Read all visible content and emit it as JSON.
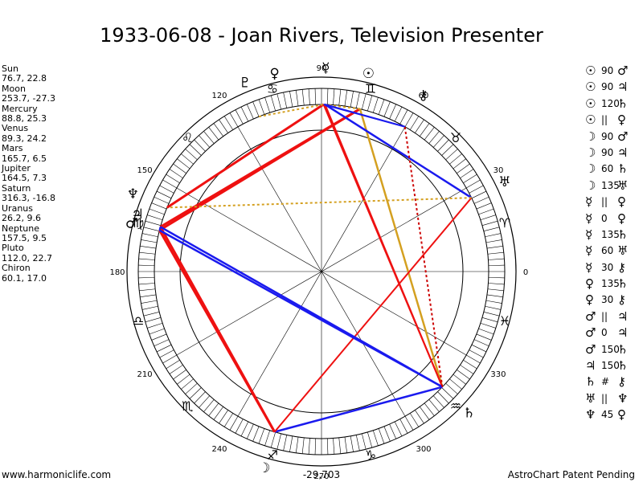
{
  "title": "1933-06-08 - Joan Rivers, Television Presenter",
  "positions": [
    {
      "name": "Sun",
      "values": "76.7, 22.8"
    },
    {
      "name": "Moon",
      "values": "253.7, -27.3"
    },
    {
      "name": "Mercury",
      "values": "88.8, 25.3"
    },
    {
      "name": "Venus",
      "values": "89.3, 24.2"
    },
    {
      "name": "Mars",
      "values": "165.7, 6.5"
    },
    {
      "name": "Jupiter",
      "values": "164.5, 7.3"
    },
    {
      "name": "Saturn",
      "values": "316.3, -16.8"
    },
    {
      "name": "Uranus",
      "values": "26.2, 9.6"
    },
    {
      "name": "Neptune",
      "values": "157.5, 9.5"
    },
    {
      "name": "Pluto",
      "values": "112.0, 22.7"
    },
    {
      "name": "Chiron",
      "values": "60.1, 17.0"
    }
  ],
  "aspects": [
    {
      "p1": "☉",
      "asp": "90",
      "p2": "♂"
    },
    {
      "p1": "☉",
      "asp": "90",
      "p2": "♃"
    },
    {
      "p1": "☉",
      "asp": "120",
      "p2": "♄"
    },
    {
      "p1": "☉",
      "asp": "||",
      "p2": "♀"
    },
    {
      "p1": "☽",
      "asp": "90",
      "p2": "♂"
    },
    {
      "p1": "☽",
      "asp": "90",
      "p2": "♃"
    },
    {
      "p1": "☽",
      "asp": "60",
      "p2": "♄"
    },
    {
      "p1": "☽",
      "asp": "135",
      "p2": "♅"
    },
    {
      "p1": "☿",
      "asp": "||",
      "p2": "♀"
    },
    {
      "p1": "☿",
      "asp": "0",
      "p2": "♀"
    },
    {
      "p1": "☿",
      "asp": "135",
      "p2": "♄"
    },
    {
      "p1": "☿",
      "asp": "60",
      "p2": "♅"
    },
    {
      "p1": "☿",
      "asp": "30",
      "p2": "⚷"
    },
    {
      "p1": "♀",
      "asp": "135",
      "p2": "♄"
    },
    {
      "p1": "♀",
      "asp": "30",
      "p2": "⚷"
    },
    {
      "p1": "♂",
      "asp": "||",
      "p2": "♃"
    },
    {
      "p1": "♂",
      "asp": "0",
      "p2": "♃"
    },
    {
      "p1": "♂",
      "asp": "150",
      "p2": "♄"
    },
    {
      "p1": "♃",
      "asp": "150",
      "p2": "♄"
    },
    {
      "p1": "♄",
      "asp": "#",
      "p2": "⚷"
    },
    {
      "p1": "♅",
      "asp": "||",
      "p2": "♆"
    },
    {
      "p1": "♆",
      "asp": "45",
      "p2": "♀"
    }
  ],
  "wheel": {
    "degree_labels": [
      "0",
      "30",
      "60",
      "90",
      "120",
      "150",
      "180",
      "210",
      "240",
      "270",
      "300",
      "330"
    ],
    "sign_glyphs": [
      "♈",
      "♉",
      "♊",
      "♋",
      "♌",
      "♍",
      "♎",
      "♏",
      "♐",
      "♑",
      "♒",
      "♓"
    ],
    "planet_glyphs": [
      "☉",
      "☽",
      "☿",
      "♀",
      "♂",
      "♃",
      "♄",
      "♅",
      "♆",
      "♇",
      "⚷"
    ],
    "planet_longitudes": [
      76.7,
      253.7,
      88.8,
      89.3,
      165.7,
      164.5,
      316.3,
      26.2,
      157.5,
      112.0,
      60.1
    ],
    "colors": {
      "red": "#ee1111",
      "blue": "#1a1aee",
      "gold": "#d4a020",
      "darkred": "#cc0000"
    }
  },
  "footer": {
    "left": "www.harmoniclife.com",
    "center": "-29,703",
    "right": "AstroChart Patent Pending"
  }
}
